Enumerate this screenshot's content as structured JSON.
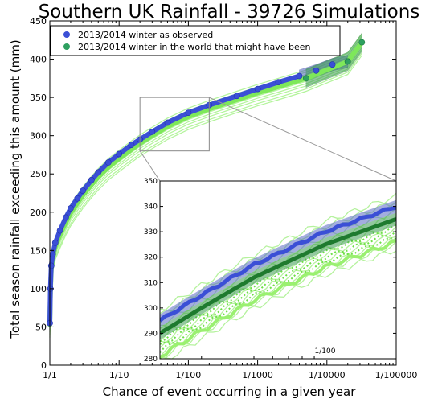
{
  "chart_data": {
    "type": "scatter",
    "title": "Southern UK Rainfall - 39726 Simulations",
    "xlabel": "Chance of event occurring in a given year",
    "ylabel": "Total season rainfall exceeding this amount (mm)",
    "xscale": "log-return-period",
    "xlim": [
      1,
      100000
    ],
    "ylim": [
      0,
      450
    ],
    "grid": false,
    "legend_position": "top-left",
    "x_ticks": [
      {
        "value": 1,
        "label": "1/1"
      },
      {
        "value": 10,
        "label": "1/10"
      },
      {
        "value": 100,
        "label": "1/100"
      },
      {
        "value": 1000,
        "label": "1/1000"
      },
      {
        "value": 10000,
        "label": "1/10000"
      },
      {
        "value": 100000,
        "label": "1/100000"
      }
    ],
    "y_ticks": [
      0,
      50,
      100,
      150,
      200,
      250,
      300,
      350,
      400,
      450
    ],
    "series": [
      {
        "name": "2013/2014 winter as observed",
        "color": "#3b4fd6",
        "band_color": "#4a5ab8",
        "points": [
          {
            "x": 1,
            "y": 55
          },
          {
            "x": 1.02,
            "y": 100
          },
          {
            "x": 1.05,
            "y": 130
          },
          {
            "x": 1.1,
            "y": 145
          },
          {
            "x": 1.2,
            "y": 160
          },
          {
            "x": 1.4,
            "y": 176
          },
          {
            "x": 1.7,
            "y": 193
          },
          {
            "x": 2,
            "y": 205
          },
          {
            "x": 2.5,
            "y": 218
          },
          {
            "x": 3,
            "y": 228
          },
          {
            "x": 4,
            "y": 242
          },
          {
            "x": 5,
            "y": 252
          },
          {
            "x": 7,
            "y": 265
          },
          {
            "x": 10,
            "y": 276
          },
          {
            "x": 15,
            "y": 288
          },
          {
            "x": 20,
            "y": 295
          },
          {
            "x": 30,
            "y": 305
          },
          {
            "x": 50,
            "y": 317
          },
          {
            "x": 100,
            "y": 330
          },
          {
            "x": 200,
            "y": 340
          },
          {
            "x": 500,
            "y": 352
          },
          {
            "x": 1000,
            "y": 361
          },
          {
            "x": 2000,
            "y": 370
          },
          {
            "x": 4000,
            "y": 378
          },
          {
            "x": 7000,
            "y": 385
          },
          {
            "x": 12000,
            "y": 393
          },
          {
            "x": 20000,
            "y": 397
          }
        ]
      },
      {
        "name": "2013/2014 winter in the world that might have been",
        "color": "#2ea060",
        "band_color": "#3a9a4f",
        "points": [
          {
            "x": 1,
            "y": 53
          },
          {
            "x": 1.02,
            "y": 95
          },
          {
            "x": 1.05,
            "y": 125
          },
          {
            "x": 1.1,
            "y": 140
          },
          {
            "x": 1.2,
            "y": 155
          },
          {
            "x": 1.4,
            "y": 170
          },
          {
            "x": 1.7,
            "y": 187
          },
          {
            "x": 2,
            "y": 199
          },
          {
            "x": 2.5,
            "y": 212
          },
          {
            "x": 3,
            "y": 222
          },
          {
            "x": 4,
            "y": 236
          },
          {
            "x": 5,
            "y": 246
          },
          {
            "x": 7,
            "y": 259
          },
          {
            "x": 10,
            "y": 270
          },
          {
            "x": 15,
            "y": 282
          },
          {
            "x": 20,
            "y": 290
          },
          {
            "x": 30,
            "y": 300
          },
          {
            "x": 50,
            "y": 312
          },
          {
            "x": 100,
            "y": 325
          },
          {
            "x": 200,
            "y": 335
          },
          {
            "x": 500,
            "y": 347
          },
          {
            "x": 1000,
            "y": 356
          },
          {
            "x": 2000,
            "y": 364
          },
          {
            "x": 5000,
            "y": 375
          },
          {
            "x": 20000,
            "y": 397
          },
          {
            "x": 32000,
            "y": 422
          }
        ]
      }
    ],
    "inset": {
      "xlim": [
        20,
        200
      ],
      "ylim": [
        280,
        350
      ],
      "x_ticks": [
        {
          "value": 100,
          "label": "1/100"
        }
      ],
      "y_ticks": [
        280,
        290,
        300,
        310,
        320,
        330,
        340,
        350
      ]
    }
  }
}
